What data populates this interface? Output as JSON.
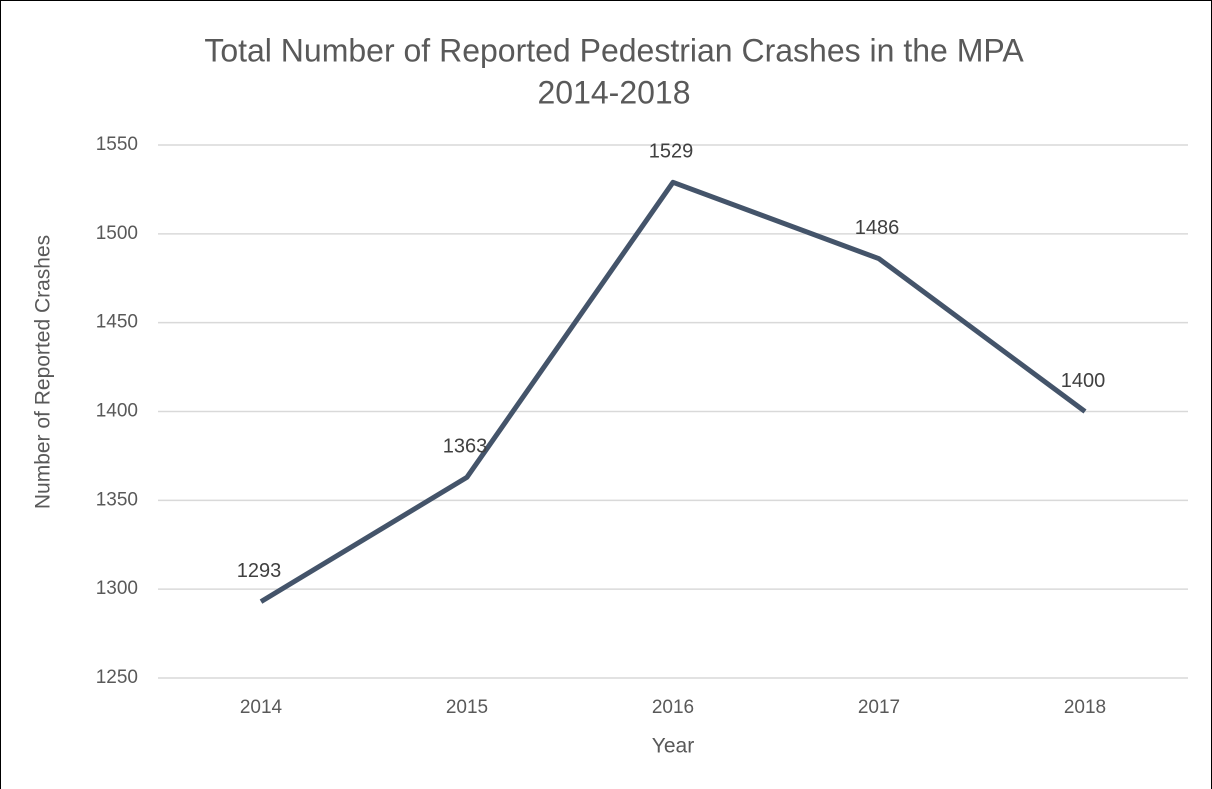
{
  "chart_data": {
    "type": "line",
    "title": [
      "Total Number of Reported Pedestrian Crashes in the MPA",
      "2014-2018"
    ],
    "x_label": "Year",
    "y_label": "Number of Reported Crashes",
    "categories": [
      "2014",
      "2015",
      "2016",
      "2017",
      "2018"
    ],
    "series": [
      {
        "name": "Crashes",
        "color": "#44546a",
        "values": [
          1293,
          1363,
          1529,
          1486,
          1400
        ]
      }
    ],
    "ylim": [
      1250,
      1550
    ],
    "yticks": [
      1250,
      1300,
      1350,
      1400,
      1450,
      1500,
      1550
    ],
    "grid": true
  }
}
